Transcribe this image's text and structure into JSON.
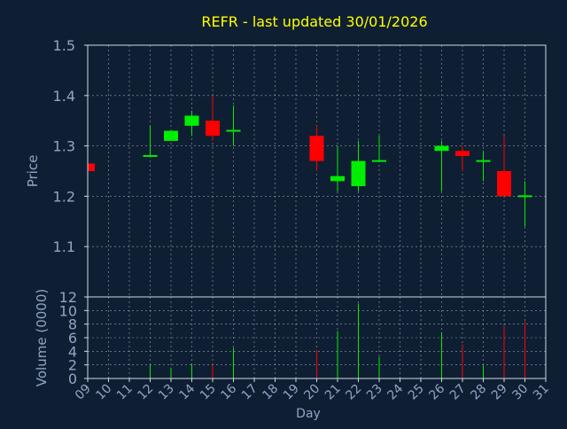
{
  "title": "REFR - last updated 30/01/2026",
  "colors": {
    "background": "#0f1f33",
    "title": "#ffff00",
    "axis_text": "#8fa6c4",
    "frame": "#cfd8e6",
    "grid": "#cfd8e6",
    "up": "#00ee00",
    "down": "#ff0000"
  },
  "chart_data": [
    {
      "type": "candlestick",
      "ylabel": "Price",
      "ylim": [
        1.0,
        1.5
      ],
      "yticks": [
        "1.1",
        "1.2",
        "1.3",
        "1.4",
        "1.5"
      ],
      "xlim": [
        9,
        31
      ],
      "grid": true,
      "candles": [
        {
          "day": 9,
          "open": 1.265,
          "close": 1.25,
          "high": 1.265,
          "low": 1.25
        },
        {
          "day": 12,
          "open": 1.28,
          "close": 1.28,
          "high": 1.34,
          "low": 1.28
        },
        {
          "day": 13,
          "open": 1.31,
          "close": 1.33,
          "high": 1.33,
          "low": 1.31
        },
        {
          "day": 14,
          "open": 1.34,
          "close": 1.36,
          "high": 1.37,
          "low": 1.32
        },
        {
          "day": 15,
          "open": 1.35,
          "close": 1.32,
          "high": 1.4,
          "low": 1.31
        },
        {
          "day": 16,
          "open": 1.33,
          "close": 1.33,
          "high": 1.38,
          "low": 1.3
        },
        {
          "day": 20,
          "open": 1.32,
          "close": 1.27,
          "high": 1.34,
          "low": 1.25
        },
        {
          "day": 21,
          "open": 1.23,
          "close": 1.24,
          "high": 1.3,
          "low": 1.21
        },
        {
          "day": 22,
          "open": 1.22,
          "close": 1.27,
          "high": 1.31,
          "low": 1.21
        },
        {
          "day": 23,
          "open": 1.27,
          "close": 1.27,
          "high": 1.32,
          "low": 1.27
        },
        {
          "day": 26,
          "open": 1.29,
          "close": 1.3,
          "high": 1.31,
          "low": 1.21
        },
        {
          "day": 27,
          "open": 1.29,
          "close": 1.28,
          "high": 1.3,
          "low": 1.25
        },
        {
          "day": 28,
          "open": 1.27,
          "close": 1.27,
          "high": 1.29,
          "low": 1.23
        },
        {
          "day": 29,
          "open": 1.25,
          "close": 1.2,
          "high": 1.32,
          "low": 1.2
        },
        {
          "day": 30,
          "open": 1.2,
          "close": 1.2,
          "high": 1.23,
          "low": 1.14
        }
      ]
    },
    {
      "type": "bar",
      "ylabel": "Volume (0000)",
      "xlabel": "Day",
      "ylim": [
        0,
        12
      ],
      "yticks": [
        "0",
        "2",
        "4",
        "6",
        "8",
        "10",
        "12"
      ],
      "xticks": [
        "09",
        "10",
        "11",
        "12",
        "13",
        "14",
        "15",
        "16",
        "17",
        "18",
        "19",
        "20",
        "21",
        "22",
        "23",
        "24",
        "25",
        "26",
        "27",
        "28",
        "29",
        "30",
        "31"
      ],
      "bars": [
        {
          "day": 12,
          "value": 2.1,
          "dir": "up"
        },
        {
          "day": 13,
          "value": 1.6,
          "dir": "up"
        },
        {
          "day": 14,
          "value": 2.2,
          "dir": "up"
        },
        {
          "day": 15,
          "value": 2.0,
          "dir": "down"
        },
        {
          "day": 16,
          "value": 4.5,
          "dir": "up"
        },
        {
          "day": 20,
          "value": 4.2,
          "dir": "down"
        },
        {
          "day": 21,
          "value": 7.0,
          "dir": "up"
        },
        {
          "day": 22,
          "value": 11.0,
          "dir": "up"
        },
        {
          "day": 23,
          "value": 3.2,
          "dir": "up"
        },
        {
          "day": 26,
          "value": 6.8,
          "dir": "up"
        },
        {
          "day": 27,
          "value": 5.0,
          "dir": "down"
        },
        {
          "day": 28,
          "value": 1.9,
          "dir": "up"
        },
        {
          "day": 29,
          "value": 7.7,
          "dir": "down"
        },
        {
          "day": 30,
          "value": 8.4,
          "dir": "down"
        }
      ]
    }
  ]
}
